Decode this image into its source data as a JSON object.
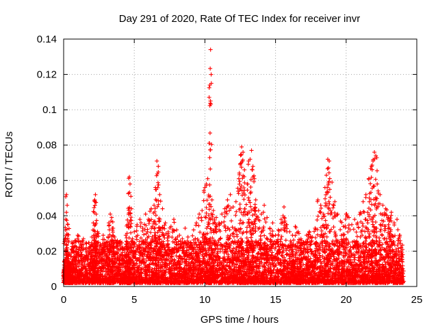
{
  "chart_data": {
    "type": "scatter",
    "title": "Day 291 of 2020, Rate Of TEC Index for receiver invr",
    "xlabel": "GPS time / hours",
    "ylabel": "ROTI / TECUs",
    "xlim": [
      0,
      25
    ],
    "ylim": [
      0,
      0.14
    ],
    "x_ticks": [
      0,
      5,
      10,
      15,
      20,
      25
    ],
    "x_tick_labels": [
      "0",
      "5",
      "10",
      "15",
      "20",
      "25"
    ],
    "y_ticks": [
      0,
      0.02,
      0.04,
      0.06,
      0.08,
      0.1,
      0.12,
      0.14
    ],
    "y_tick_labels": [
      "0",
      "0.02",
      "0.04",
      "0.06",
      "0.08",
      "0.1",
      "0.12",
      "0.14"
    ],
    "grid": true,
    "marker": "plus",
    "marker_color": "#ff0000",
    "series": [
      {
        "name": "ROTI",
        "x": [
          0.05,
          0.1,
          0.15,
          0.2,
          0.25,
          0.3,
          0.3,
          0.35,
          0.4,
          0.5,
          0.6,
          0.8,
          1.0,
          1.2,
          1.4,
          1.6,
          1.8,
          2.0,
          2.1,
          2.2,
          2.25,
          2.3,
          2.4,
          2.6,
          2.8,
          3.0,
          3.2,
          3.3,
          3.4,
          3.5,
          3.6,
          3.8,
          4.0,
          4.2,
          4.4,
          4.5,
          4.6,
          4.65,
          4.7,
          4.8,
          5.0,
          5.2,
          5.4,
          5.6,
          5.8,
          6.0,
          6.2,
          6.4,
          6.5,
          6.6,
          6.7,
          6.8,
          7.0,
          7.2,
          7.4,
          7.6,
          7.8,
          8.0,
          8.2,
          8.4,
          8.6,
          8.8,
          9.0,
          9.2,
          9.4,
          9.6,
          9.8,
          10.0,
          10.1,
          10.2,
          10.3,
          10.35,
          10.4,
          10.5,
          10.6,
          10.8,
          11.0,
          11.2,
          11.4,
          11.6,
          11.8,
          12.0,
          12.2,
          12.4,
          12.5,
          12.6,
          12.7,
          12.8,
          13.0,
          13.1,
          13.2,
          13.3,
          13.4,
          13.5,
          13.6,
          13.8,
          14.0,
          14.2,
          14.4,
          14.6,
          14.8,
          15.0,
          15.2,
          15.4,
          15.6,
          15.8,
          16.0,
          16.2,
          16.4,
          16.6,
          16.8,
          17.0,
          17.2,
          17.4,
          17.6,
          17.8,
          18.0,
          18.2,
          18.4,
          18.5,
          18.6,
          18.7,
          18.8,
          19.0,
          19.2,
          19.4,
          19.6,
          19.8,
          20.0,
          20.2,
          20.4,
          20.6,
          20.8,
          21.0,
          21.2,
          21.4,
          21.6,
          21.8,
          21.9,
          22.0,
          22.1,
          22.2,
          22.4,
          22.6,
          22.8,
          23.0,
          23.2,
          23.4,
          23.6,
          23.8,
          23.9,
          24.0
        ],
        "y": [
          0.011,
          0.026,
          0.038,
          0.052,
          0.046,
          0.035,
          0.018,
          0.012,
          0.014,
          0.017,
          0.021,
          0.026,
          0.029,
          0.024,
          0.027,
          0.022,
          0.019,
          0.028,
          0.036,
          0.049,
          0.052,
          0.041,
          0.031,
          0.024,
          0.029,
          0.025,
          0.036,
          0.041,
          0.039,
          0.033,
          0.028,
          0.026,
          0.024,
          0.022,
          0.029,
          0.035,
          0.041,
          0.062,
          0.058,
          0.044,
          0.031,
          0.035,
          0.038,
          0.033,
          0.041,
          0.038,
          0.044,
          0.046,
          0.056,
          0.071,
          0.068,
          0.052,
          0.044,
          0.036,
          0.031,
          0.034,
          0.038,
          0.032,
          0.029,
          0.027,
          0.033,
          0.028,
          0.025,
          0.032,
          0.036,
          0.041,
          0.043,
          0.056,
          0.058,
          0.061,
          0.081,
          0.114,
          0.134,
          0.049,
          0.043,
          0.039,
          0.036,
          0.041,
          0.044,
          0.049,
          0.052,
          0.045,
          0.048,
          0.061,
          0.069,
          0.079,
          0.076,
          0.066,
          0.058,
          0.071,
          0.072,
          0.077,
          0.068,
          0.061,
          0.049,
          0.043,
          0.041,
          0.046,
          0.039,
          0.033,
          0.036,
          0.029,
          0.032,
          0.038,
          0.045,
          0.035,
          0.031,
          0.029,
          0.034,
          0.031,
          0.027,
          0.025,
          0.029,
          0.031,
          0.028,
          0.033,
          0.049,
          0.046,
          0.041,
          0.056,
          0.063,
          0.072,
          0.071,
          0.059,
          0.048,
          0.041,
          0.037,
          0.034,
          0.041,
          0.039,
          0.035,
          0.038,
          0.036,
          0.042,
          0.048,
          0.052,
          0.061,
          0.068,
          0.071,
          0.076,
          0.074,
          0.058,
          0.052,
          0.046,
          0.044,
          0.039,
          0.042,
          0.036,
          0.038,
          0.029,
          0.022,
          0.018
        ]
      }
    ],
    "noise_floor_band": [
      0.002,
      0.019
    ]
  }
}
